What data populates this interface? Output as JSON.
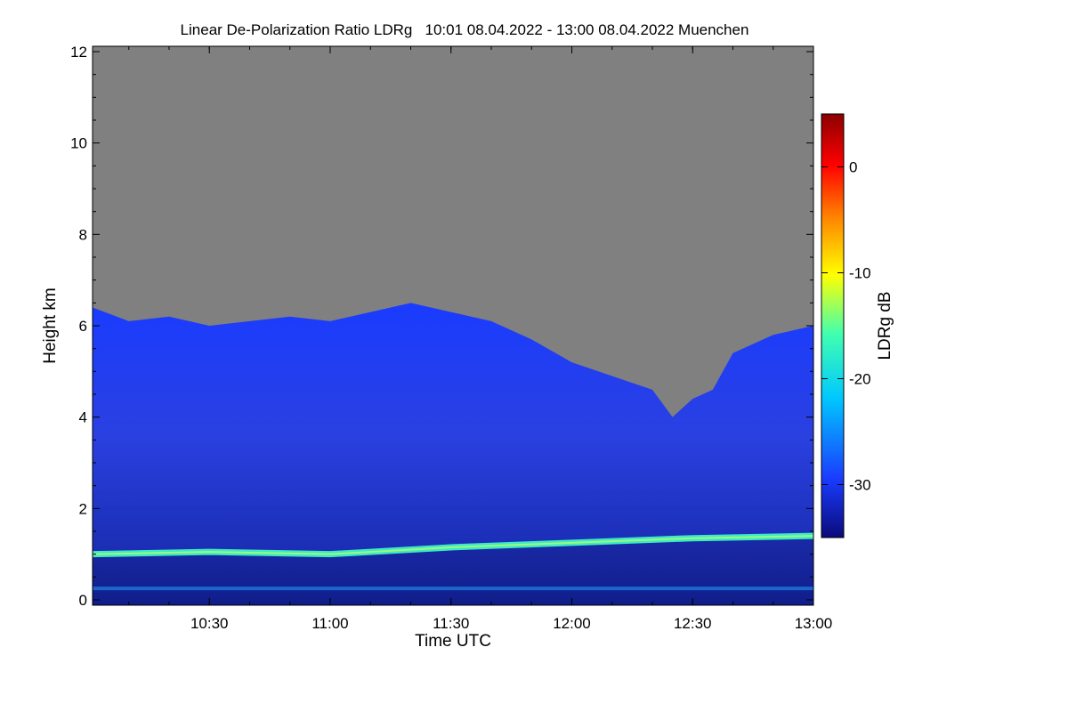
{
  "chart_data": {
    "type": "heatmap",
    "title": "Linear De-Polarization Ratio LDRg   10:01 08.04.2022 - 13:00 08.04.2022 Muenchen",
    "xlabel": "Time UTC",
    "ylabel": "Height km",
    "x_ticks": [
      "10:30",
      "11:00",
      "11:30",
      "12:00",
      "12:30",
      "13:00"
    ],
    "x_range_minutes_utc": [
      601,
      780
    ],
    "y_ticks": [
      "0",
      "2",
      "4",
      "6",
      "8",
      "10",
      "12"
    ],
    "ylim": [
      0,
      12
    ],
    "colorbar": {
      "label": "LDRg dB",
      "ticks": [
        "0",
        "-10",
        "-20",
        "-30"
      ],
      "range": [
        -35,
        5
      ],
      "colormap": [
        "#0a0a7a",
        "#1a3cff",
        "#00c8ff",
        "#40ffb0",
        "#ffff00",
        "#ff8000",
        "#ff0000",
        "#8b0000"
      ]
    },
    "no_data_color": "#808080",
    "cloud_top_km": [
      {
        "t": 601,
        "h": 6.4
      },
      {
        "t": 610,
        "h": 6.1
      },
      {
        "t": 620,
        "h": 6.2
      },
      {
        "t": 630,
        "h": 6.0
      },
      {
        "t": 640,
        "h": 6.1
      },
      {
        "t": 650,
        "h": 6.2
      },
      {
        "t": 660,
        "h": 6.1
      },
      {
        "t": 670,
        "h": 6.3
      },
      {
        "t": 680,
        "h": 6.5
      },
      {
        "t": 690,
        "h": 6.3
      },
      {
        "t": 700,
        "h": 6.1
      },
      {
        "t": 710,
        "h": 5.7
      },
      {
        "t": 720,
        "h": 5.2
      },
      {
        "t": 730,
        "h": 4.9
      },
      {
        "t": 740,
        "h": 4.6
      },
      {
        "t": 745,
        "h": 4.0
      },
      {
        "t": 750,
        "h": 4.4
      },
      {
        "t": 755,
        "h": 4.6
      },
      {
        "t": 760,
        "h": 5.4
      },
      {
        "t": 765,
        "h": 5.6
      },
      {
        "t": 770,
        "h": 5.8
      },
      {
        "t": 780,
        "h": 6.0
      }
    ],
    "bright_layer_km": [
      {
        "t": 601,
        "h": 1.0
      },
      {
        "t": 630,
        "h": 1.05
      },
      {
        "t": 660,
        "h": 1.0
      },
      {
        "t": 690,
        "h": 1.15
      },
      {
        "t": 720,
        "h": 1.25
      },
      {
        "t": 750,
        "h": 1.35
      },
      {
        "t": 780,
        "h": 1.4
      }
    ],
    "aerosol_layer_km": 0.25
  }
}
